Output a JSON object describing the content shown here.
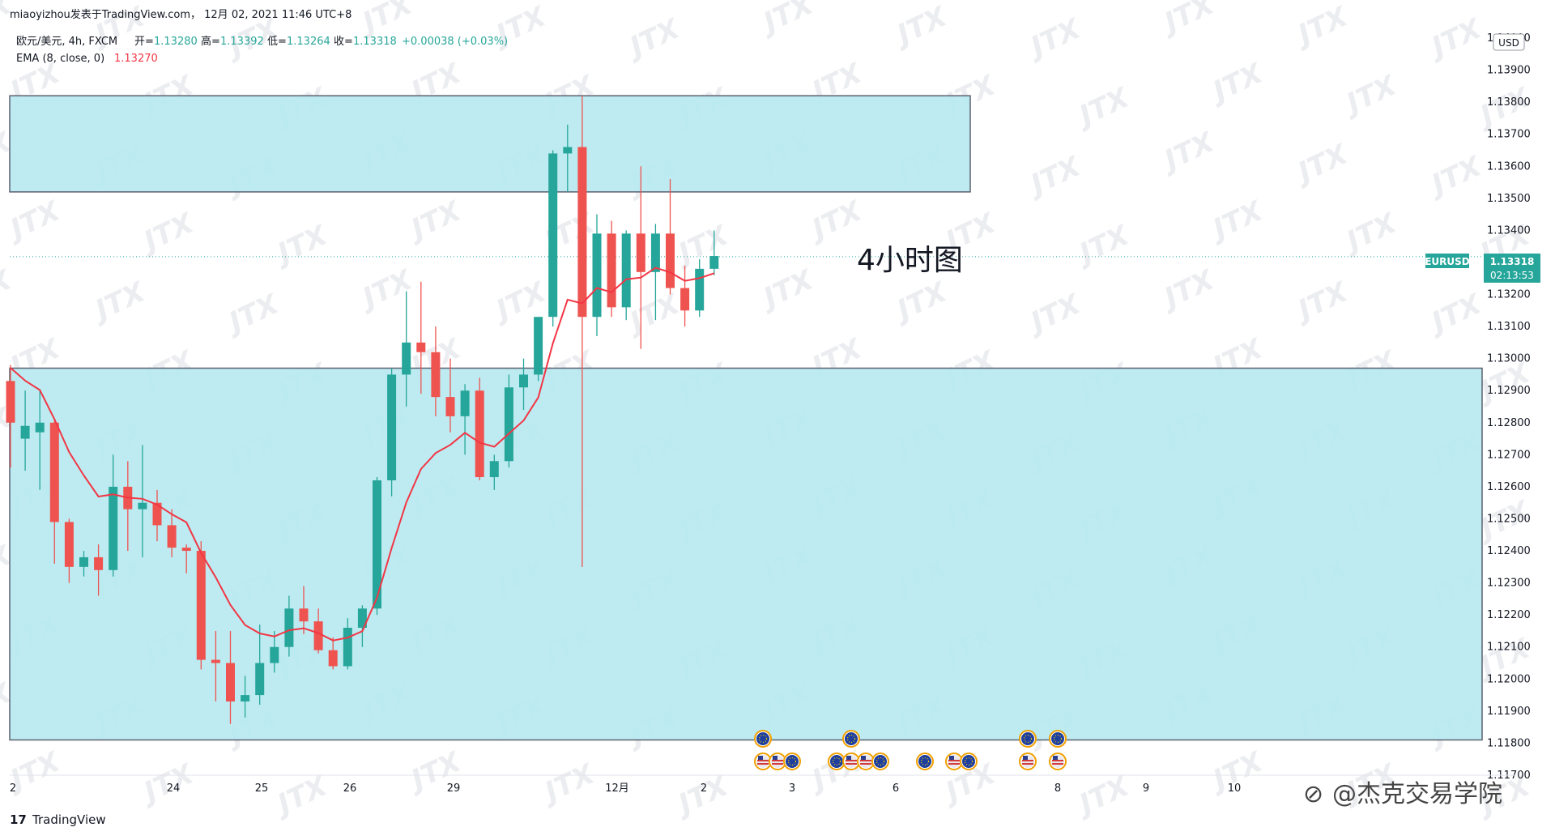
{
  "header": {
    "publisher_line": "miaoyizhou发表于TradingView.com， 12月 02, 2021 11:46 UTC+8",
    "symbol_line": "欧元/美元, 4h, FXCM",
    "ohlc": [
      {
        "label": "开=",
        "value": "1.13280"
      },
      {
        "label": "高=",
        "value": "1.13392"
      },
      {
        "label": "低=",
        "value": "1.13264"
      },
      {
        "label": "收=",
        "value": "1.13318"
      }
    ],
    "change": "+0.00038 (+0.03%)",
    "ema_label": "EMA (8, close, 0)",
    "ema_value": "1.13270"
  },
  "currency_button": "USD",
  "price_tag": {
    "symbol": "EURUSD",
    "price": "1.13318",
    "countdown": "02:13:53"
  },
  "annotation": "4小时图",
  "footer": {
    "brand": "TradingView",
    "account": "@杰克交易学院"
  },
  "watermark": "JTX",
  "colors": {
    "up": "#26a69a",
    "down": "#ef5350",
    "ema": "#f23645",
    "zone": "#b9eaf0",
    "price_line": "#26a69a"
  },
  "chart_data": {
    "type": "candlestick",
    "symbol": "EURUSD",
    "timeframe": "4h",
    "y_ticks": [
      "1.14000",
      "1.13900",
      "1.13800",
      "1.13700",
      "1.13600",
      "1.13500",
      "1.13400",
      "1.13200",
      "1.13100",
      "1.13000",
      "1.12900",
      "1.12800",
      "1.12700",
      "1.12600",
      "1.12500",
      "1.12400",
      "1.12300",
      "1.12200",
      "1.12100",
      "1.12000",
      "1.11900",
      "1.11800",
      "1.11700"
    ],
    "x_ticks": [
      "2",
      "24",
      "25",
      "26",
      "29",
      "12月",
      "2",
      "3",
      "6",
      "8",
      "9",
      "10"
    ],
    "ylim": [
      1.1168,
      1.1402
    ],
    "zones": [
      {
        "top": 1.1382,
        "bottom": 1.1352
      },
      {
        "top": 1.1297,
        "bottom": 1.1181
      }
    ],
    "candles": [
      {
        "o": 1.1293,
        "h": 1.1298,
        "l": 1.1266,
        "c": 1.128
      },
      {
        "o": 1.1275,
        "h": 1.129,
        "l": 1.1265,
        "c": 1.1279
      },
      {
        "o": 1.1277,
        "h": 1.129,
        "l": 1.1259,
        "c": 1.128
      },
      {
        "o": 1.128,
        "h": 1.1281,
        "l": 1.1236,
        "c": 1.1249
      },
      {
        "o": 1.1249,
        "h": 1.125,
        "l": 1.123,
        "c": 1.1235
      },
      {
        "o": 1.1235,
        "h": 1.124,
        "l": 1.1232,
        "c": 1.1238
      },
      {
        "o": 1.1238,
        "h": 1.1242,
        "l": 1.1226,
        "c": 1.1234
      },
      {
        "o": 1.1234,
        "h": 1.127,
        "l": 1.1232,
        "c": 1.126
      },
      {
        "o": 1.126,
        "h": 1.1268,
        "l": 1.124,
        "c": 1.1253
      },
      {
        "o": 1.1253,
        "h": 1.1273,
        "l": 1.1238,
        "c": 1.1255
      },
      {
        "o": 1.1255,
        "h": 1.1259,
        "l": 1.1243,
        "c": 1.1248
      },
      {
        "o": 1.1248,
        "h": 1.1253,
        "l": 1.1238,
        "c": 1.1241
      },
      {
        "o": 1.1241,
        "h": 1.1242,
        "l": 1.1233,
        "c": 1.124
      },
      {
        "o": 1.124,
        "h": 1.1243,
        "l": 1.1203,
        "c": 1.1206
      },
      {
        "o": 1.1206,
        "h": 1.1215,
        "l": 1.1193,
        "c": 1.1205
      },
      {
        "o": 1.1205,
        "h": 1.1215,
        "l": 1.1186,
        "c": 1.1193
      },
      {
        "o": 1.1193,
        "h": 1.1201,
        "l": 1.1188,
        "c": 1.1195
      },
      {
        "o": 1.1195,
        "h": 1.1217,
        "l": 1.1192,
        "c": 1.1205
      },
      {
        "o": 1.1205,
        "h": 1.1215,
        "l": 1.1202,
        "c": 1.121
      },
      {
        "o": 1.121,
        "h": 1.1226,
        "l": 1.1207,
        "c": 1.1222
      },
      {
        "o": 1.1222,
        "h": 1.1229,
        "l": 1.1214,
        "c": 1.1218
      },
      {
        "o": 1.1218,
        "h": 1.1222,
        "l": 1.1208,
        "c": 1.1209
      },
      {
        "o": 1.1209,
        "h": 1.1213,
        "l": 1.1203,
        "c": 1.1204
      },
      {
        "o": 1.1204,
        "h": 1.1219,
        "l": 1.1203,
        "c": 1.1216
      },
      {
        "o": 1.1216,
        "h": 1.1223,
        "l": 1.121,
        "c": 1.1222
      },
      {
        "o": 1.1222,
        "h": 1.1263,
        "l": 1.122,
        "c": 1.1262
      },
      {
        "o": 1.1262,
        "h": 1.1297,
        "l": 1.1257,
        "c": 1.1295
      },
      {
        "o": 1.1295,
        "h": 1.1321,
        "l": 1.1285,
        "c": 1.1305
      },
      {
        "o": 1.1305,
        "h": 1.1324,
        "l": 1.1289,
        "c": 1.1302
      },
      {
        "o": 1.1302,
        "h": 1.131,
        "l": 1.1282,
        "c": 1.1288
      },
      {
        "o": 1.1288,
        "h": 1.13,
        "l": 1.1277,
        "c": 1.1282
      },
      {
        "o": 1.1282,
        "h": 1.1292,
        "l": 1.127,
        "c": 1.129
      },
      {
        "o": 1.129,
        "h": 1.1294,
        "l": 1.1262,
        "c": 1.1263
      },
      {
        "o": 1.1263,
        "h": 1.127,
        "l": 1.1259,
        "c": 1.1268
      },
      {
        "o": 1.1268,
        "h": 1.1295,
        "l": 1.1266,
        "c": 1.1291
      },
      {
        "o": 1.1291,
        "h": 1.13,
        "l": 1.1284,
        "c": 1.1295
      },
      {
        "o": 1.1295,
        "h": 1.1313,
        "l": 1.1293,
        "c": 1.1313
      },
      {
        "o": 1.1313,
        "h": 1.1365,
        "l": 1.131,
        "c": 1.1364
      },
      {
        "o": 1.1364,
        "h": 1.1373,
        "l": 1.1352,
        "c": 1.1366
      },
      {
        "o": 1.1366,
        "h": 1.1382,
        "l": 1.1235,
        "c": 1.1313
      },
      {
        "o": 1.1313,
        "h": 1.1345,
        "l": 1.1307,
        "c": 1.1339
      },
      {
        "o": 1.1339,
        "h": 1.1343,
        "l": 1.1313,
        "c": 1.1316
      },
      {
        "o": 1.1316,
        "h": 1.134,
        "l": 1.1312,
        "c": 1.1339
      },
      {
        "o": 1.1339,
        "h": 1.136,
        "l": 1.1303,
        "c": 1.1327
      },
      {
        "o": 1.1327,
        "h": 1.1342,
        "l": 1.1312,
        "c": 1.1339
      },
      {
        "o": 1.1339,
        "h": 1.1356,
        "l": 1.132,
        "c": 1.1322
      },
      {
        "o": 1.1322,
        "h": 1.1329,
        "l": 1.131,
        "c": 1.1315
      },
      {
        "o": 1.1315,
        "h": 1.1331,
        "l": 1.1313,
        "c": 1.1328
      },
      {
        "o": 1.1328,
        "h": 1.134,
        "l": 1.1326,
        "c": 1.1332
      }
    ],
    "ema": {
      "name": "EMA (8, close, 0)",
      "last": 1.1327
    }
  }
}
